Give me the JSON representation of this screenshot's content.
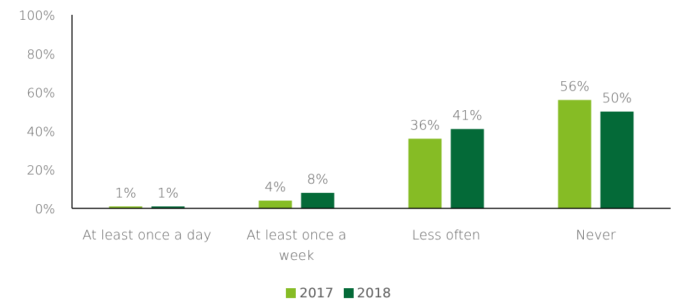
{
  "chart_data": {
    "type": "bar",
    "categories": [
      [
        "At least once a day"
      ],
      [
        "At least once a",
        "week"
      ],
      [
        "Less often"
      ],
      [
        "Never"
      ]
    ],
    "series": [
      {
        "name": "2017",
        "values": [
          1,
          4,
          36,
          56
        ],
        "labels": [
          "1%",
          "4%",
          "36%",
          "56%"
        ],
        "color": "#86bc25"
      },
      {
        "name": "2018",
        "values": [
          1,
          8,
          41,
          50
        ],
        "labels": [
          "1%",
          "8%",
          "41%",
          "50%"
        ],
        "color": "#046a38"
      }
    ],
    "y_ticks": [
      {
        "value": 0,
        "label": "0%"
      },
      {
        "value": 20,
        "label": "20%"
      },
      {
        "value": 40,
        "label": "40%"
      },
      {
        "value": 60,
        "label": "60%"
      },
      {
        "value": 80,
        "label": "80%"
      },
      {
        "value": 100,
        "label": "100%"
      }
    ],
    "ylim": [
      0,
      100
    ],
    "grid": false,
    "legend_position": "bottom-center",
    "axis_color": "#000000"
  }
}
